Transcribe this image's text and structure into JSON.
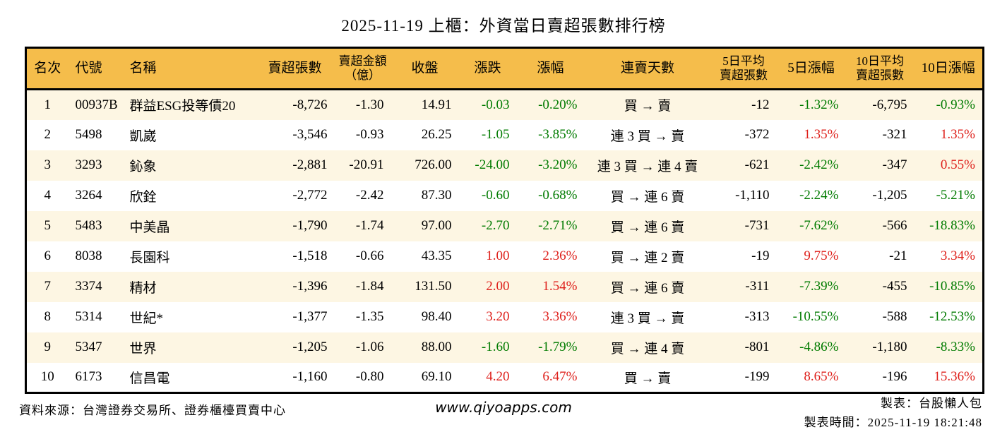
{
  "title": "2025-11-19 上櫃：外資當日賣超張數排行榜",
  "colors": {
    "green": "#007B00",
    "red": "#DE1F1A",
    "header_bg": "#F5BD4B",
    "row_alt_bg": "#FDF6E3",
    "border": "#000000"
  },
  "table": {
    "columns": [
      {
        "key": "rank",
        "label": "名次",
        "align": "center"
      },
      {
        "key": "code",
        "label": "代號",
        "align": "left"
      },
      {
        "key": "name",
        "label": "名稱",
        "align": "left"
      },
      {
        "key": "net_sell_volume",
        "label": "賣超張數",
        "align": "right"
      },
      {
        "key": "net_sell_amount",
        "label": "賣超金額\n（億）",
        "align": "right"
      },
      {
        "key": "close",
        "label": "收盤",
        "align": "right"
      },
      {
        "key": "change",
        "label": "漲跌",
        "align": "right",
        "color_key": "change_color"
      },
      {
        "key": "change_pct",
        "label": "漲幅",
        "align": "right",
        "color_key": "change_pct_color"
      },
      {
        "key": "streak",
        "label": "連賣天數",
        "align": "center"
      },
      {
        "key": "avg5",
        "label": "5日平均\n賣超張數",
        "align": "right"
      },
      {
        "key": "pct5",
        "label": "5日漲幅",
        "align": "right",
        "color_key": "pct5_color"
      },
      {
        "key": "avg10",
        "label": "10日平均\n賣超張數",
        "align": "right"
      },
      {
        "key": "pct10",
        "label": "10日漲幅",
        "align": "right",
        "color_key": "pct10_color"
      }
    ],
    "rows": [
      {
        "rank": "1",
        "code": "00937B",
        "name": "群益ESG投等債20",
        "net_sell_volume": "-8,726",
        "net_sell_amount": "-1.30",
        "close": "14.91",
        "change": "-0.03",
        "change_color": "green",
        "change_pct": "-0.20%",
        "change_pct_color": "green",
        "streak": "買 → 賣",
        "avg5": "-12",
        "pct5": "-1.32%",
        "pct5_color": "green",
        "avg10": "-6,795",
        "pct10": "-0.93%",
        "pct10_color": "green"
      },
      {
        "rank": "2",
        "code": "5498",
        "name": "凱崴",
        "net_sell_volume": "-3,546",
        "net_sell_amount": "-0.93",
        "close": "26.25",
        "change": "-1.05",
        "change_color": "green",
        "change_pct": "-3.85%",
        "change_pct_color": "green",
        "streak": "連 3 買 → 賣",
        "avg5": "-372",
        "pct5": "1.35%",
        "pct5_color": "red",
        "avg10": "-321",
        "pct10": "1.35%",
        "pct10_color": "red"
      },
      {
        "rank": "3",
        "code": "3293",
        "name": "鈊象",
        "net_sell_volume": "-2,881",
        "net_sell_amount": "-20.91",
        "close": "726.00",
        "change": "-24.00",
        "change_color": "green",
        "change_pct": "-3.20%",
        "change_pct_color": "green",
        "streak": "連 3 買 → 連 4 賣",
        "avg5": "-621",
        "pct5": "-2.42%",
        "pct5_color": "green",
        "avg10": "-347",
        "pct10": "0.55%",
        "pct10_color": "red"
      },
      {
        "rank": "4",
        "code": "3264",
        "name": "欣銓",
        "net_sell_volume": "-2,772",
        "net_sell_amount": "-2.42",
        "close": "87.30",
        "change": "-0.60",
        "change_color": "green",
        "change_pct": "-0.68%",
        "change_pct_color": "green",
        "streak": "買 → 連 6 賣",
        "avg5": "-1,110",
        "pct5": "-2.24%",
        "pct5_color": "green",
        "avg10": "-1,205",
        "pct10": "-5.21%",
        "pct10_color": "green"
      },
      {
        "rank": "5",
        "code": "5483",
        "name": "中美晶",
        "net_sell_volume": "-1,790",
        "net_sell_amount": "-1.74",
        "close": "97.00",
        "change": "-2.70",
        "change_color": "green",
        "change_pct": "-2.71%",
        "change_pct_color": "green",
        "streak": "買 → 連 6 賣",
        "avg5": "-731",
        "pct5": "-7.62%",
        "pct5_color": "green",
        "avg10": "-566",
        "pct10": "-18.83%",
        "pct10_color": "green"
      },
      {
        "rank": "6",
        "code": "8038",
        "name": "長園科",
        "net_sell_volume": "-1,518",
        "net_sell_amount": "-0.66",
        "close": "43.35",
        "change": "1.00",
        "change_color": "red",
        "change_pct": "2.36%",
        "change_pct_color": "red",
        "streak": "買 → 連 2 賣",
        "avg5": "-19",
        "pct5": "9.75%",
        "pct5_color": "red",
        "avg10": "-21",
        "pct10": "3.34%",
        "pct10_color": "red"
      },
      {
        "rank": "7",
        "code": "3374",
        "name": "精材",
        "net_sell_volume": "-1,396",
        "net_sell_amount": "-1.84",
        "close": "131.50",
        "change": "2.00",
        "change_color": "red",
        "change_pct": "1.54%",
        "change_pct_color": "red",
        "streak": "買 → 連 6 賣",
        "avg5": "-311",
        "pct5": "-7.39%",
        "pct5_color": "green",
        "avg10": "-455",
        "pct10": "-10.85%",
        "pct10_color": "green"
      },
      {
        "rank": "8",
        "code": "5314",
        "name": "世紀*",
        "net_sell_volume": "-1,377",
        "net_sell_amount": "-1.35",
        "close": "98.40",
        "change": "3.20",
        "change_color": "red",
        "change_pct": "3.36%",
        "change_pct_color": "red",
        "streak": "連 3 買 → 賣",
        "avg5": "-313",
        "pct5": "-10.55%",
        "pct5_color": "green",
        "avg10": "-588",
        "pct10": "-12.53%",
        "pct10_color": "green"
      },
      {
        "rank": "9",
        "code": "5347",
        "name": "世界",
        "net_sell_volume": "-1,205",
        "net_sell_amount": "-1.06",
        "close": "88.00",
        "change": "-1.60",
        "change_color": "green",
        "change_pct": "-1.79%",
        "change_pct_color": "green",
        "streak": "買 → 連 4 賣",
        "avg5": "-801",
        "pct5": "-4.86%",
        "pct5_color": "green",
        "avg10": "-1,180",
        "pct10": "-8.33%",
        "pct10_color": "green"
      },
      {
        "rank": "10",
        "code": "6173",
        "name": "信昌電",
        "net_sell_volume": "-1,160",
        "net_sell_amount": "-0.80",
        "close": "69.10",
        "change": "4.20",
        "change_color": "red",
        "change_pct": "6.47%",
        "change_pct_color": "red",
        "streak": "買 → 賣",
        "avg5": "-199",
        "pct5": "8.65%",
        "pct5_color": "red",
        "avg10": "-196",
        "pct10": "15.36%",
        "pct10_color": "red"
      }
    ]
  },
  "footer": {
    "source": "資料來源：台灣證券交易所、證券櫃檯買賣中心",
    "website": "www.qiyoapps.com",
    "author": "製表：台股懶人包",
    "generated": "製表時間：2025-11-19 18:21:48"
  }
}
